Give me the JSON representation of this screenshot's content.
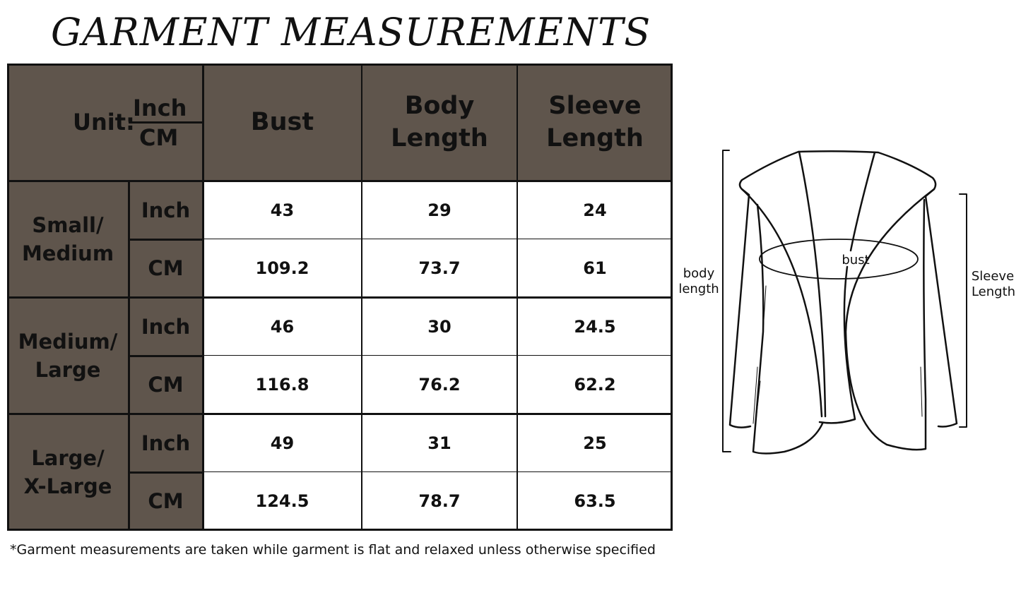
{
  "title": "GARMENT MEASUREMENTS",
  "table": {
    "unit_label": "Unit:",
    "unit_top": "Inch",
    "unit_bottom": "CM",
    "columns": [
      "Bust",
      "Body Length",
      "Sleeve Length"
    ],
    "sizes": [
      {
        "name": "Small/ Medium",
        "rows": [
          {
            "unit": "Inch",
            "values": [
              "43",
              "29",
              "24"
            ]
          },
          {
            "unit": "CM",
            "values": [
              "109.2",
              "73.7",
              "61"
            ]
          }
        ]
      },
      {
        "name": "Medium/ Large",
        "rows": [
          {
            "unit": "Inch",
            "values": [
              "46",
              "30",
              "24.5"
            ]
          },
          {
            "unit": "CM",
            "values": [
              "116.8",
              "76.2",
              "62.2"
            ]
          }
        ]
      },
      {
        "name": "Large/ X-Large",
        "rows": [
          {
            "unit": "Inch",
            "values": [
              "49",
              "31",
              "25"
            ]
          },
          {
            "unit": "CM",
            "values": [
              "124.5",
              "78.7",
              "63.5"
            ]
          }
        ]
      }
    ],
    "header_color": "#5f554c"
  },
  "footnote": "*Garment measurements are taken while garment is flat and relaxed unless otherwise specified",
  "diagram": {
    "body_length_label": [
      "body",
      "length"
    ],
    "bust_label": "bust",
    "sleeve_length_label": [
      "Sleeve",
      "Length"
    ]
  }
}
